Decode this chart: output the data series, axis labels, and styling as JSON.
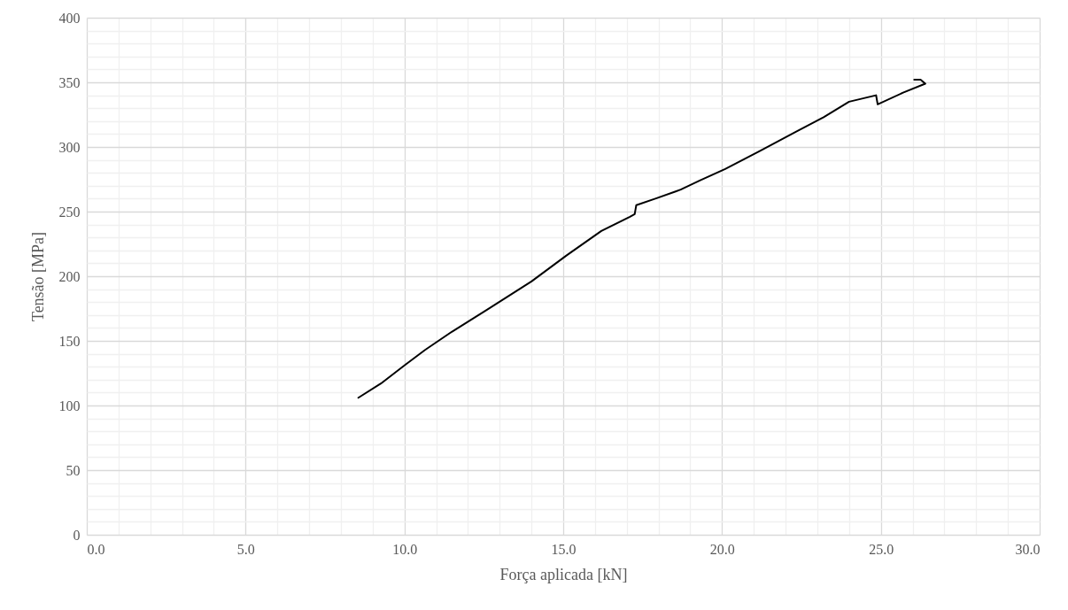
{
  "chart_data": {
    "type": "line",
    "xlabel": "Força aplicada [kN]",
    "ylabel": "Tensão [MPa]",
    "x": [
      8.55,
      9.26,
      10.0,
      10.65,
      11.49,
      12.6,
      14.0,
      15.1,
      16.2,
      17.1,
      17.25,
      17.3,
      17.9,
      18.7,
      19.3,
      20.1,
      21.2,
      22.35,
      23.2,
      24.0,
      24.85,
      24.9,
      25.7,
      26.4,
      26.25,
      26.05
    ],
    "series": [
      {
        "color": "#000000",
        "values": [
          106,
          117,
          131,
          143,
          157,
          174,
          196,
          216,
          235,
          246,
          248,
          255,
          260,
          267,
          274,
          283,
          297,
          312,
          323,
          335,
          340,
          333,
          342,
          349,
          352,
          352
        ]
      }
    ],
    "xlim": [
      0,
      30
    ],
    "xticks": [
      {
        "value": 0,
        "label": "0.0"
      },
      {
        "value": 1,
        "label": null
      },
      {
        "value": 2,
        "label": null
      },
      {
        "value": 3,
        "label": null
      },
      {
        "value": 4,
        "label": null
      },
      {
        "value": 5,
        "label": "5.0"
      },
      {
        "value": 6,
        "label": null
      },
      {
        "value": 7,
        "label": null
      },
      {
        "value": 8,
        "label": null
      },
      {
        "value": 9,
        "label": null
      },
      {
        "value": 10,
        "label": "10.0"
      },
      {
        "value": 11,
        "label": null
      },
      {
        "value": 12,
        "label": null
      },
      {
        "value": 13,
        "label": null
      },
      {
        "value": 14,
        "label": null
      },
      {
        "value": 15,
        "label": "15.0"
      },
      {
        "value": 16,
        "label": null
      },
      {
        "value": 17,
        "label": null
      },
      {
        "value": 18,
        "label": null
      },
      {
        "value": 19,
        "label": null
      },
      {
        "value": 20,
        "label": "20.0"
      },
      {
        "value": 21,
        "label": null
      },
      {
        "value": 22,
        "label": null
      },
      {
        "value": 23,
        "label": null
      },
      {
        "value": 24,
        "label": null
      },
      {
        "value": 25,
        "label": "25.0"
      },
      {
        "value": 26,
        "label": null
      },
      {
        "value": 27,
        "label": null
      },
      {
        "value": 28,
        "label": null
      },
      {
        "value": 29,
        "label": null
      },
      {
        "value": 30,
        "label": "30.0"
      }
    ],
    "ylim": [
      0,
      400
    ],
    "yticks": [
      0,
      {
        "value": 10,
        "label": null
      },
      {
        "value": 20,
        "label": null
      },
      {
        "value": 30,
        "label": null
      },
      {
        "value": 40,
        "label": null
      },
      50,
      {
        "value": 60,
        "label": null
      },
      {
        "value": 70,
        "label": null
      },
      {
        "value": 80,
        "label": null
      },
      {
        "value": 90,
        "label": null
      },
      100,
      {
        "value": 110,
        "label": null
      },
      {
        "value": 120,
        "label": null
      },
      {
        "value": 130,
        "label": null
      },
      {
        "value": 140,
        "label": null
      },
      150,
      {
        "value": 160,
        "label": null
      },
      {
        "value": 170,
        "label": null
      },
      {
        "value": 180,
        "label": null
      },
      {
        "value": 190,
        "label": null
      },
      200,
      {
        "value": 210,
        "label": null
      },
      {
        "value": 220,
        "label": null
      },
      {
        "value": 230,
        "label": null
      },
      {
        "value": 240,
        "label": null
      },
      250,
      {
        "value": 260,
        "label": null
      },
      {
        "value": 270,
        "label": null
      },
      {
        "value": 280,
        "label": null
      },
      {
        "value": 290,
        "label": null
      },
      300,
      {
        "value": 310,
        "label": null
      },
      {
        "value": 320,
        "label": null
      },
      {
        "value": 330,
        "label": null
      },
      {
        "value": 340,
        "label": null
      },
      350,
      {
        "value": 360,
        "label": null
      },
      {
        "value": 370,
        "label": null
      },
      {
        "value": 380,
        "label": null
      },
      {
        "value": 390,
        "label": null
      },
      400
    ],
    "grid": true,
    "marker": "none",
    "line_style": "solid"
  }
}
